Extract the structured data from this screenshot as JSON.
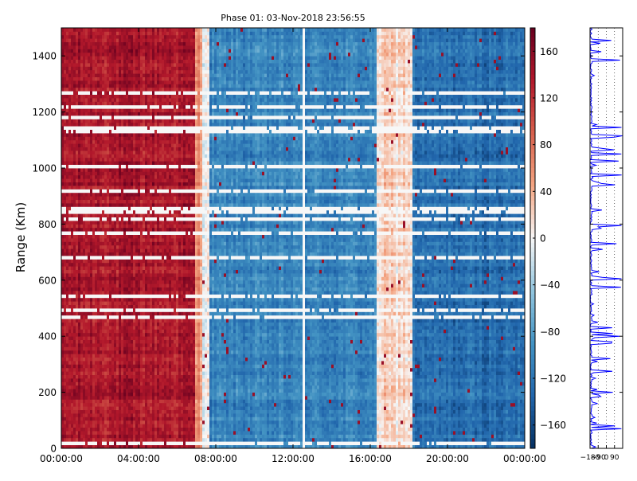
{
  "chart_data": [
    {
      "type": "heatmap",
      "title": "Phase 01: 03-Nov-2018 23:56:55",
      "xlabel": "",
      "ylabel": "Range (Km)",
      "x_ticks": [
        "00:00:00",
        "04:00:00",
        "08:00:00",
        "12:00:00",
        "16:00:00",
        "20:00:00",
        "00:00:00"
      ],
      "y_ticks": [
        0,
        200,
        400,
        600,
        800,
        1000,
        1200,
        1400
      ],
      "ylim": [
        0,
        1500
      ],
      "xlim_hours": [
        0,
        24
      ],
      "grid": false,
      "colormap": "RdBu_r",
      "colorbar": {
        "ticks": [
          160,
          120,
          80,
          40,
          0,
          -40,
          -80,
          -120,
          -160
        ],
        "range": [
          -180,
          180
        ],
        "colors": [
          "#053061",
          "#2166ac",
          "#4393c3",
          "#92c5de",
          "#f7f7f7",
          "#f4a582",
          "#d6604d",
          "#b2182b",
          "#67001f"
        ]
      },
      "phase_regimes": [
        {
          "from_hour": 0.0,
          "to_hour": 6.9,
          "approx_phase_deg": 140
        },
        {
          "from_hour": 6.9,
          "to_hour": 7.3,
          "approx_phase_deg": 60
        },
        {
          "from_hour": 7.3,
          "to_hour": 7.7,
          "approx_phase_deg": 0
        },
        {
          "from_hour": 7.7,
          "to_hour": 16.3,
          "approx_phase_deg": -105
        },
        {
          "from_hour": 16.3,
          "to_hour": 18.2,
          "approx_phase_deg": 20
        },
        {
          "from_hour": 18.2,
          "to_hour": 24.0,
          "approx_phase_deg": -125
        }
      ],
      "data_gaps_hours": [
        12.6
      ]
    },
    {
      "type": "line",
      "x_ticks": [
        "−180",
        "−90",
        "0",
        "90"
      ],
      "xlim": [
        -180,
        180
      ],
      "ylim": [
        0,
        1500
      ],
      "grid": true,
      "series_color": "#0000ff"
    }
  ]
}
